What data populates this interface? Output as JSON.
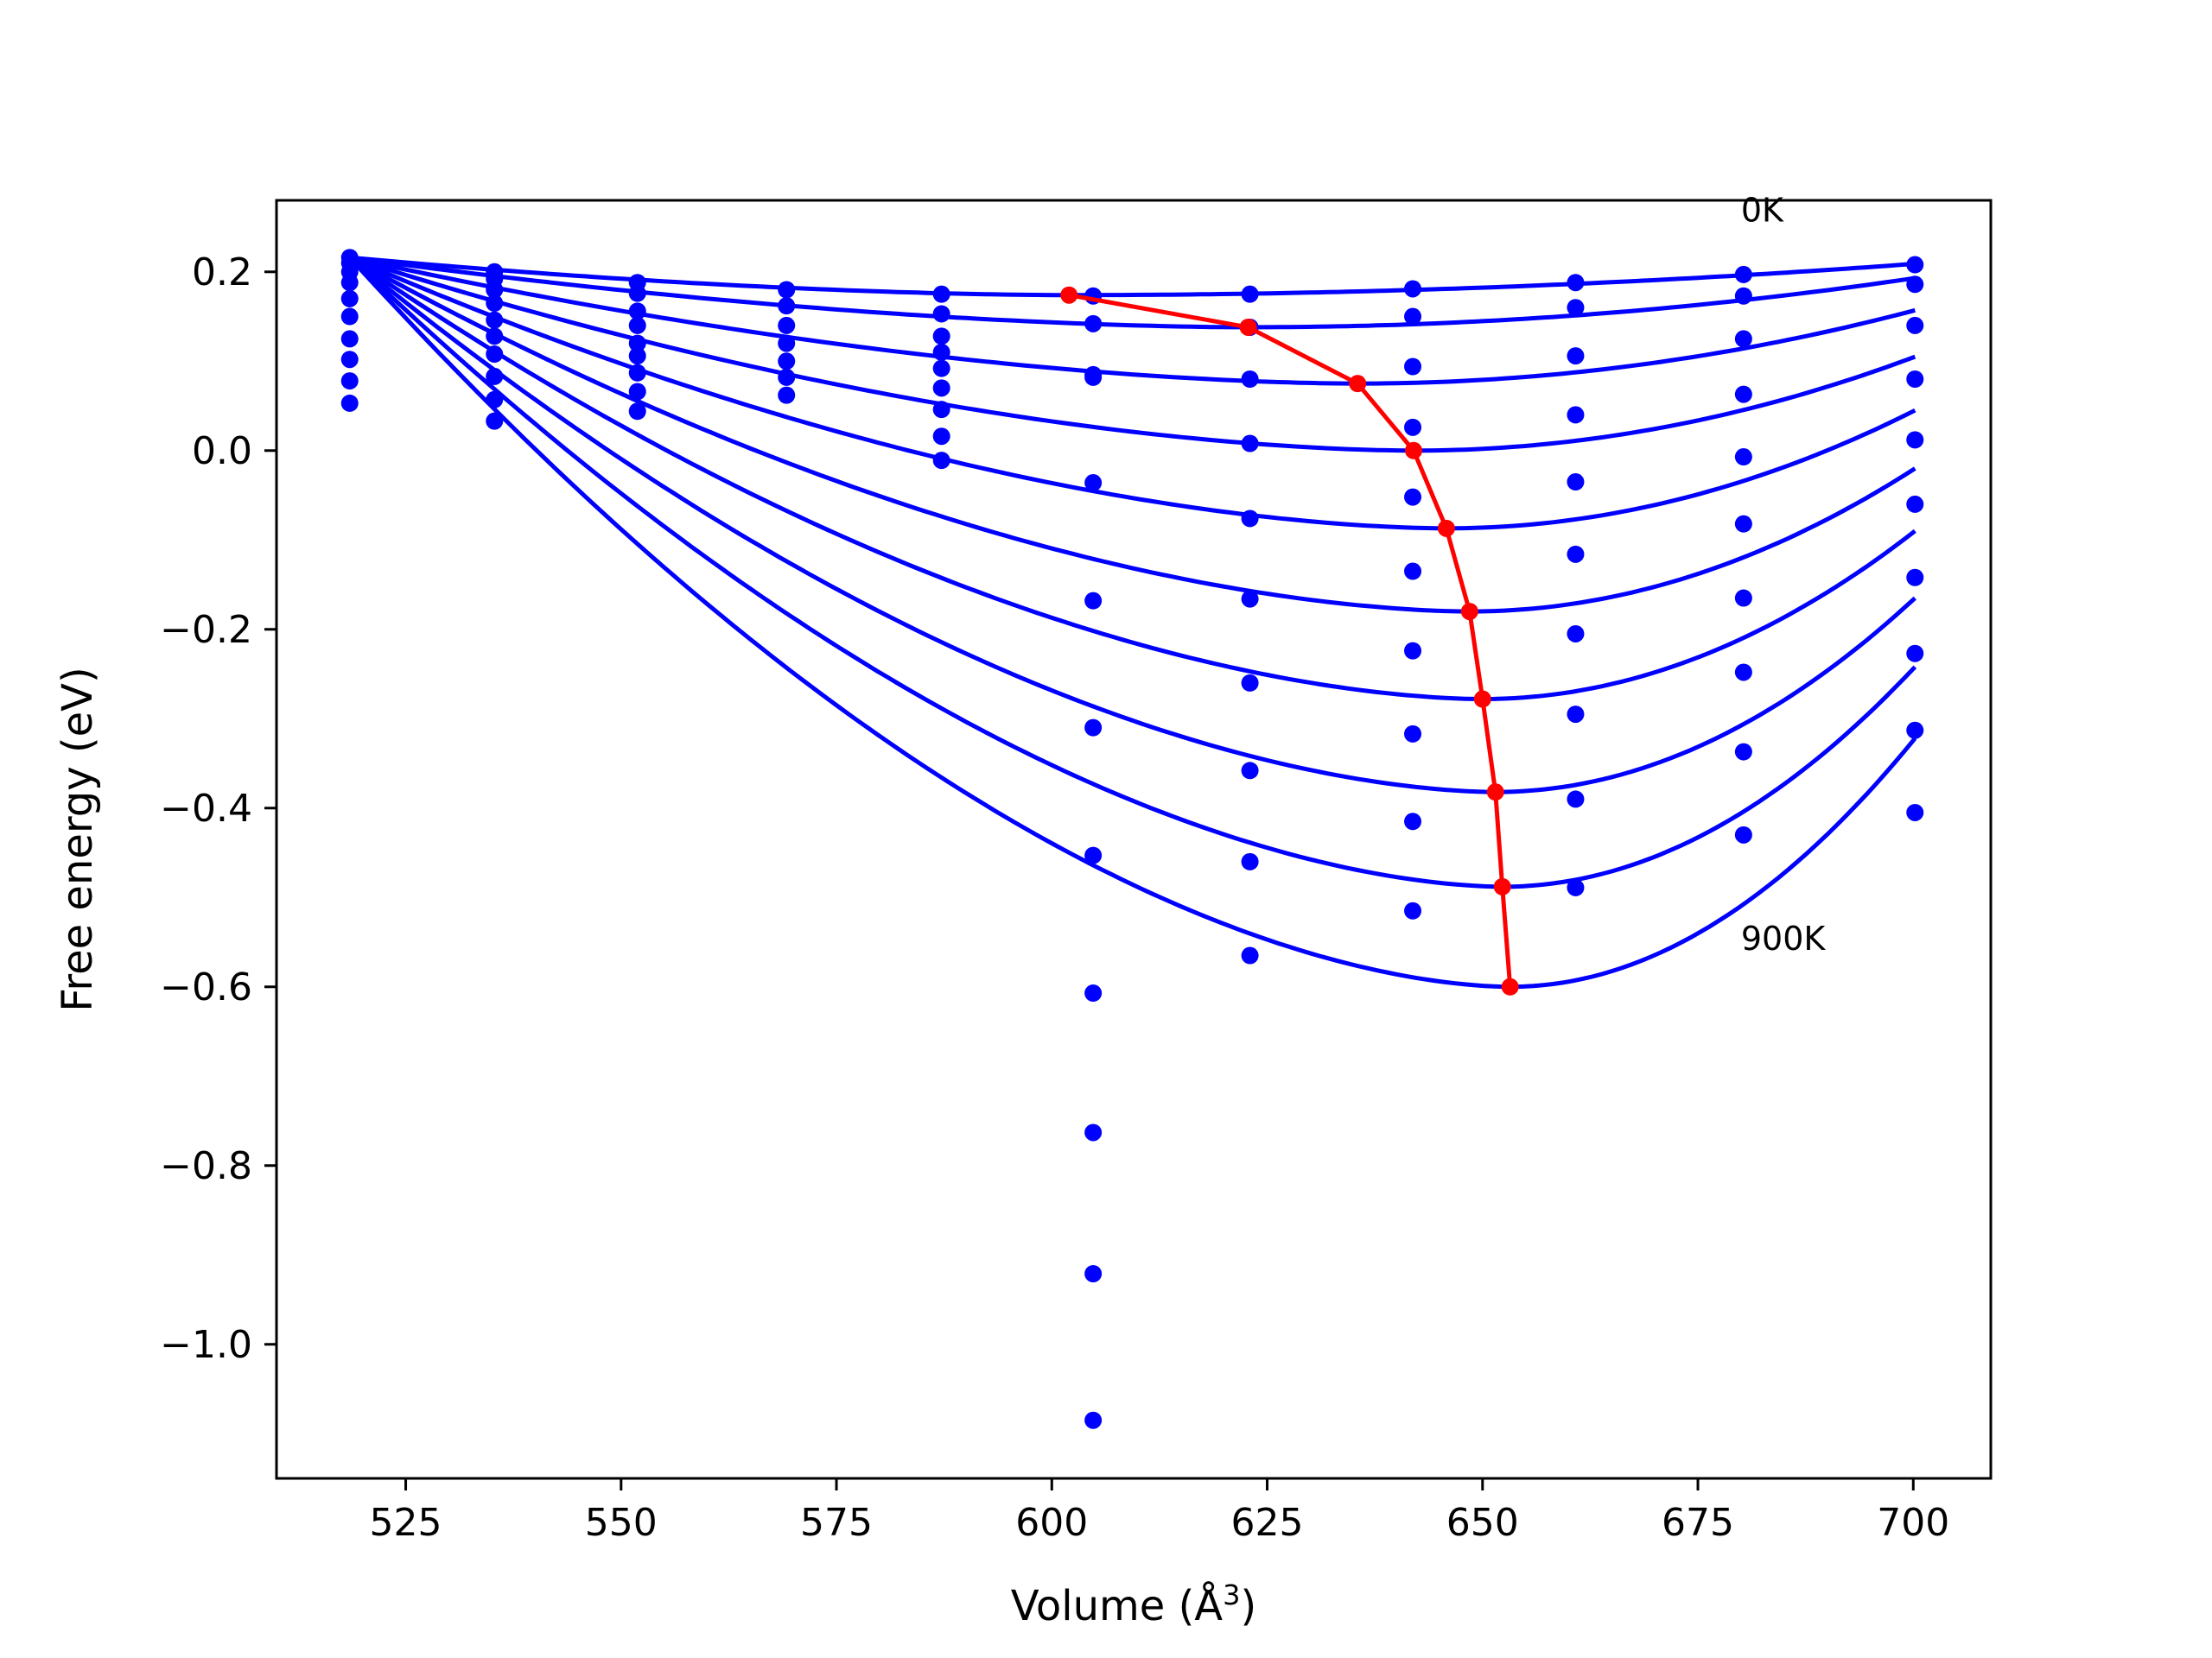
{
  "chart_data": {
    "type": "line",
    "title": "",
    "xlabel": "Volume (Å",
    "xlabel_sup": "3",
    "xlabel_close": ")",
    "ylabel": "Free energy (eV)",
    "xlim": [
      510,
      709
    ],
    "ylim": [
      -1.15,
      0.28
    ],
    "grid": false,
    "legend": "none",
    "x_ticks": [
      {
        "v": 525,
        "label": "525"
      },
      {
        "v": 550,
        "label": "550"
      },
      {
        "v": 575,
        "label": "575"
      },
      {
        "v": 600,
        "label": "600"
      },
      {
        "v": 625,
        "label": "625"
      },
      {
        "v": 650,
        "label": "650"
      },
      {
        "v": 675,
        "label": "675"
      },
      {
        "v": 700,
        "label": "700"
      }
    ],
    "y_ticks": [
      {
        "v": 0.2,
        "label": "0.2"
      },
      {
        "v": 0.0,
        "label": "0.0"
      },
      {
        "v": -0.2,
        "label": "−0.2"
      },
      {
        "v": -0.4,
        "label": "−0.4"
      },
      {
        "v": -0.6,
        "label": "−0.6"
      },
      {
        "v": -0.8,
        "label": "−0.8"
      },
      {
        "v": -1.0,
        "label": "−1.0"
      }
    ],
    "annotations": [
      {
        "text": "0K",
        "x": 680,
        "y": 0.27
      },
      {
        "text": "900K",
        "x": 680,
        "y": -0.545
      }
    ],
    "volumes": [
      518.5,
      535.3,
      551.9,
      569.2,
      587.2,
      604.8,
      623.0,
      641.9,
      660.8,
      680.3,
      700.2
    ],
    "series": [
      {
        "free_energy": [
          0.216,
          0.2,
          0.188,
          0.18,
          0.175,
          0.173,
          0.175,
          0.181,
          0.188,
          0.197,
          0.208
        ],
        "min_volume": 602.0,
        "min_energy": 0.174
      },
      {
        "free_energy": [
          0.21,
          0.192,
          0.176,
          0.162,
          0.153,
          0.142,
          0.138,
          0.15,
          0.16,
          0.173,
          0.186
        ],
        "min_volume": 622.8,
        "min_energy": 0.138
      },
      {
        "free_energy": [
          0.2,
          0.18,
          0.156,
          0.14,
          0.128,
          0.085,
          0.08,
          0.094,
          0.106,
          0.125,
          0.14
        ],
        "min_volume": 635.5,
        "min_energy": 0.075
      },
      {
        "free_energy": [
          0.188,
          0.165,
          0.14,
          0.12,
          0.11,
          0.082,
          0.008,
          0.026,
          0.04,
          0.063,
          0.08
        ],
        "min_volume": 642.0,
        "min_energy": 0.0
      },
      {
        "free_energy": [
          0.17,
          0.146,
          0.12,
          0.1,
          0.092,
          -0.036,
          -0.076,
          -0.052,
          -0.035,
          -0.007,
          0.012
        ],
        "min_volume": 645.8,
        "min_energy": -0.087
      },
      {
        "free_energy": [
          0.15,
          0.128,
          0.106,
          0.082,
          0.07,
          -0.168,
          -0.166,
          -0.135,
          -0.116,
          -0.082,
          -0.06
        ],
        "min_volume": 648.5,
        "min_energy": -0.18
      },
      {
        "free_energy": [
          0.125,
          0.108,
          0.087,
          0.062,
          0.046,
          -0.31,
          -0.26,
          -0.224,
          -0.205,
          -0.165,
          -0.142
        ],
        "min_volume": 650.0,
        "min_energy": -0.278
      },
      {
        "free_energy": [
          0.102,
          0.083,
          0.066,
          null,
          0.016,
          -0.453,
          -0.358,
          -0.317,
          -0.295,
          -0.248,
          -0.227
        ],
        "min_volume": 651.5,
        "min_energy": -0.382
      },
      {
        "free_energy": [
          0.078,
          0.057,
          0.044,
          null,
          -0.011,
          -0.607,
          -0.46,
          -0.415,
          -0.39,
          -0.337,
          -0.313
        ],
        "min_volume": 652.3,
        "min_energy": -0.488
      },
      {
        "free_energy": [
          0.053,
          0.033,
          null,
          null,
          null,
          -0.763,
          -0.565,
          -0.515,
          -0.489,
          -0.43,
          -0.405
        ],
        "min_volume": 653.2,
        "min_energy": -0.6
      },
      {
        "free_energy": [
          null,
          null,
          null,
          null,
          null,
          -0.921,
          null,
          null,
          null,
          null,
          null
        ]
      },
      {
        "free_energy": [
          null,
          null,
          null,
          null,
          null,
          -1.085,
          null,
          null,
          null,
          null,
          null
        ]
      }
    ],
    "min_path_color": "#ff0000",
    "curve_color": "#0000ff",
    "point_color": "#0000ff"
  }
}
